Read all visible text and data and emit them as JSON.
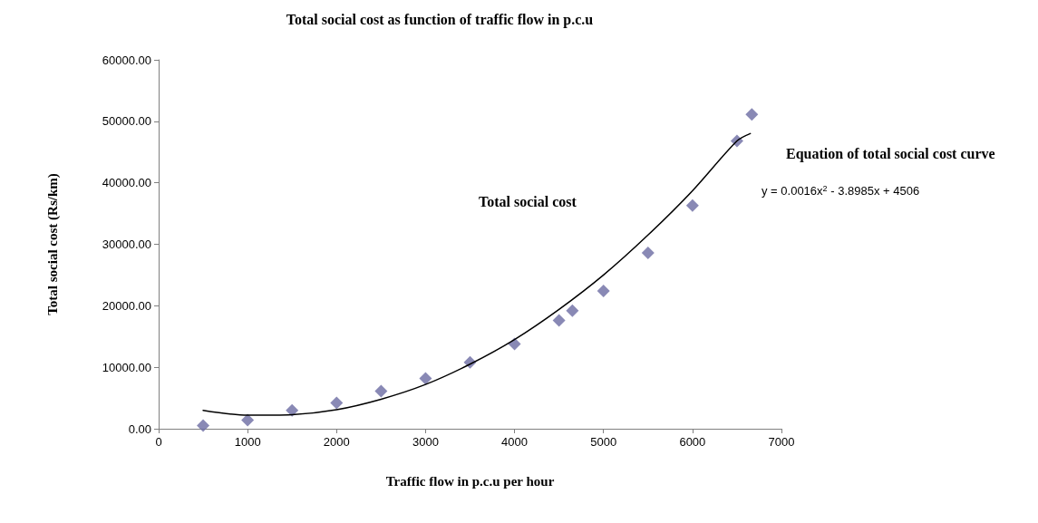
{
  "chart_data": {
    "type": "scatter",
    "title": "Total social cost as function of traffic flow in p.c.u",
    "xlabel": "Traffic flow in p.c.u per hour",
    "ylabel": "Total social cost (Rs/km)",
    "series": [
      {
        "color": "#6b6ba3",
        "marker": "diamond",
        "x": [
          500,
          1000,
          1500,
          2000,
          2500,
          3000,
          3500,
          4000,
          4500,
          4650,
          5000,
          5500,
          6000,
          6500,
          6667
        ],
        "values": [
          500,
          1400,
          3000,
          4200,
          6100,
          8200,
          10800,
          13800,
          17600,
          19200,
          22400,
          28600,
          36300,
          46800,
          51100
        ]
      },
      {
        "type": "line",
        "color": "#000000",
        "marker": "none",
        "line_style": "solid",
        "x": [
          500,
          1000,
          1500,
          2000,
          2500,
          3000,
          3500,
          4000,
          4500,
          5000,
          5500,
          6000,
          6500,
          6650
        ],
        "values": [
          3000,
          2200,
          2300,
          3100,
          4800,
          7200,
          10500,
          14500,
          19400,
          25000,
          31500,
          38700,
          46800,
          48000
        ]
      }
    ],
    "annotations": [
      "Total social cost",
      "Equation of total social cost curve",
      "y = 0.0016x$^{2}$ - 3.8985x + 4506"
    ],
    "xlim": [
      0,
      7000
    ],
    "xticks": [
      0,
      1000,
      2000,
      3000,
      4000,
      5000,
      6000,
      7000
    ],
    "ylim": [
      0,
      60000
    ],
    "yticks": [
      {
        "value": 0,
        "label": "0.00"
      },
      {
        "value": 10000,
        "label": "10000.00"
      },
      {
        "value": 20000,
        "label": "20000.00"
      },
      {
        "value": 30000,
        "label": "30000.00"
      },
      {
        "value": 40000,
        "label": "40000.00"
      },
      {
        "value": 50000,
        "label": "50000.00"
      },
      {
        "value": 60000,
        "label": "60000.00"
      }
    ],
    "grid": false
  }
}
